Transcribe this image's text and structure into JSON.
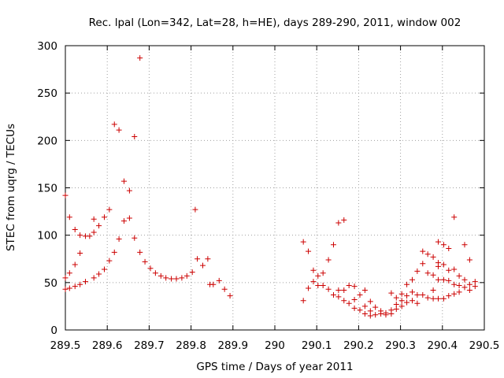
{
  "chart_data": {
    "type": "scatter",
    "title": "Rec. lpal (Lon=342, Lat=28, h=HE), days 289-290, 2011, window 002",
    "xlabel": "GPS time / Days of year 2011",
    "ylabel": "STEC from uqrg / TECUs",
    "xlim": [
      289.5,
      290.5
    ],
    "ylim": [
      0,
      300
    ],
    "xticks": [
      289.5,
      289.6,
      289.7,
      289.8,
      289.9,
      290,
      290.1,
      290.2,
      290.3,
      290.4,
      290.5
    ],
    "xtick_labels": [
      "289.5",
      "289.6",
      "289.7",
      "289.8",
      "289.9",
      "290",
      "290.1",
      "290.2",
      "290.3",
      "290.4",
      "290.5"
    ],
    "yticks": [
      0,
      50,
      100,
      150,
      200,
      250,
      300
    ],
    "ytick_labels": [
      "0",
      "50",
      "100",
      "150",
      "200",
      "250",
      "300"
    ],
    "grid": true,
    "marker": "+",
    "color": "#cc0000",
    "series": [
      {
        "name": "STEC",
        "points": [
          [
            289.5,
            142
          ],
          [
            289.5,
            55
          ],
          [
            289.5,
            43
          ],
          [
            289.51,
            119
          ],
          [
            289.51,
            60
          ],
          [
            289.51,
            44
          ],
          [
            289.523,
            106
          ],
          [
            289.523,
            69
          ],
          [
            289.523,
            46
          ],
          [
            289.535,
            100
          ],
          [
            289.535,
            81
          ],
          [
            289.535,
            48
          ],
          [
            289.548,
            99
          ],
          [
            289.548,
            51
          ],
          [
            289.558,
            99
          ],
          [
            289.568,
            117
          ],
          [
            289.568,
            103
          ],
          [
            289.568,
            55
          ],
          [
            289.58,
            110
          ],
          [
            289.58,
            59
          ],
          [
            289.593,
            119
          ],
          [
            289.593,
            64
          ],
          [
            289.605,
            127
          ],
          [
            289.605,
            73
          ],
          [
            289.617,
            217
          ],
          [
            289.617,
            82
          ],
          [
            289.628,
            211
          ],
          [
            289.628,
            96
          ],
          [
            289.64,
            157
          ],
          [
            289.64,
            115
          ],
          [
            289.653,
            147
          ],
          [
            289.653,
            118
          ],
          [
            289.665,
            204
          ],
          [
            289.665,
            97
          ],
          [
            289.678,
            287
          ],
          [
            289.678,
            82
          ],
          [
            289.69,
            72
          ],
          [
            289.703,
            65
          ],
          [
            289.715,
            60
          ],
          [
            289.728,
            57
          ],
          [
            289.74,
            55
          ],
          [
            289.753,
            54
          ],
          [
            289.765,
            54
          ],
          [
            289.778,
            55
          ],
          [
            289.79,
            57
          ],
          [
            289.803,
            61
          ],
          [
            289.81,
            127
          ],
          [
            289.815,
            75
          ],
          [
            289.828,
            68
          ],
          [
            289.84,
            75
          ],
          [
            289.845,
            48
          ],
          [
            289.853,
            48
          ],
          [
            289.867,
            52
          ],
          [
            289.88,
            43
          ],
          [
            289.893,
            36
          ],
          [
            290.068,
            93
          ],
          [
            290.068,
            31
          ],
          [
            290.08,
            83
          ],
          [
            290.08,
            44
          ],
          [
            290.092,
            63
          ],
          [
            290.092,
            51
          ],
          [
            290.103,
            57
          ],
          [
            290.103,
            47
          ],
          [
            290.115,
            60
          ],
          [
            290.115,
            47
          ],
          [
            290.128,
            74
          ],
          [
            290.128,
            43
          ],
          [
            290.14,
            90
          ],
          [
            290.14,
            37
          ],
          [
            290.152,
            113
          ],
          [
            290.152,
            42
          ],
          [
            290.152,
            35
          ],
          [
            290.165,
            116
          ],
          [
            290.165,
            42
          ],
          [
            290.165,
            31
          ],
          [
            290.177,
            47
          ],
          [
            290.177,
            28
          ],
          [
            290.19,
            46
          ],
          [
            290.19,
            32
          ],
          [
            290.19,
            23
          ],
          [
            290.203,
            37
          ],
          [
            290.203,
            21
          ],
          [
            290.215,
            42
          ],
          [
            290.215,
            25
          ],
          [
            290.215,
            17
          ],
          [
            290.228,
            30
          ],
          [
            290.228,
            20
          ],
          [
            290.228,
            15
          ],
          [
            290.24,
            24
          ],
          [
            290.24,
            16
          ],
          [
            290.253,
            20
          ],
          [
            290.253,
            17
          ],
          [
            290.265,
            18
          ],
          [
            290.265,
            16
          ],
          [
            290.278,
            39
          ],
          [
            290.278,
            21
          ],
          [
            290.278,
            17
          ],
          [
            290.29,
            34
          ],
          [
            290.29,
            27
          ],
          [
            290.29,
            22
          ],
          [
            290.303,
            38
          ],
          [
            290.303,
            31
          ],
          [
            290.303,
            25
          ],
          [
            290.315,
            48
          ],
          [
            290.315,
            36
          ],
          [
            290.315,
            29
          ],
          [
            290.328,
            53
          ],
          [
            290.328,
            40
          ],
          [
            290.328,
            31
          ],
          [
            290.34,
            62
          ],
          [
            290.34,
            37
          ],
          [
            290.34,
            28
          ],
          [
            290.353,
            83
          ],
          [
            290.353,
            70
          ],
          [
            290.353,
            37
          ],
          [
            290.365,
            80
          ],
          [
            290.365,
            60
          ],
          [
            290.365,
            34
          ],
          [
            290.378,
            77
          ],
          [
            290.378,
            58
          ],
          [
            290.378,
            42
          ],
          [
            290.378,
            33
          ],
          [
            290.39,
            93
          ],
          [
            290.39,
            71
          ],
          [
            290.39,
            67
          ],
          [
            290.39,
            53
          ],
          [
            290.39,
            33
          ],
          [
            290.403,
            90
          ],
          [
            290.403,
            69
          ],
          [
            290.403,
            53
          ],
          [
            290.403,
            33
          ],
          [
            290.415,
            86
          ],
          [
            290.415,
            63
          ],
          [
            290.415,
            52
          ],
          [
            290.415,
            36
          ],
          [
            290.428,
            119
          ],
          [
            290.428,
            64
          ],
          [
            290.428,
            48
          ],
          [
            290.428,
            38
          ],
          [
            290.44,
            57
          ],
          [
            290.44,
            47
          ],
          [
            290.44,
            40
          ],
          [
            290.453,
            90
          ],
          [
            290.453,
            53
          ],
          [
            290.453,
            45
          ],
          [
            290.465,
            74
          ],
          [
            290.465,
            48
          ],
          [
            290.465,
            42
          ],
          [
            290.478,
            51
          ],
          [
            290.478,
            46
          ]
        ]
      }
    ]
  }
}
